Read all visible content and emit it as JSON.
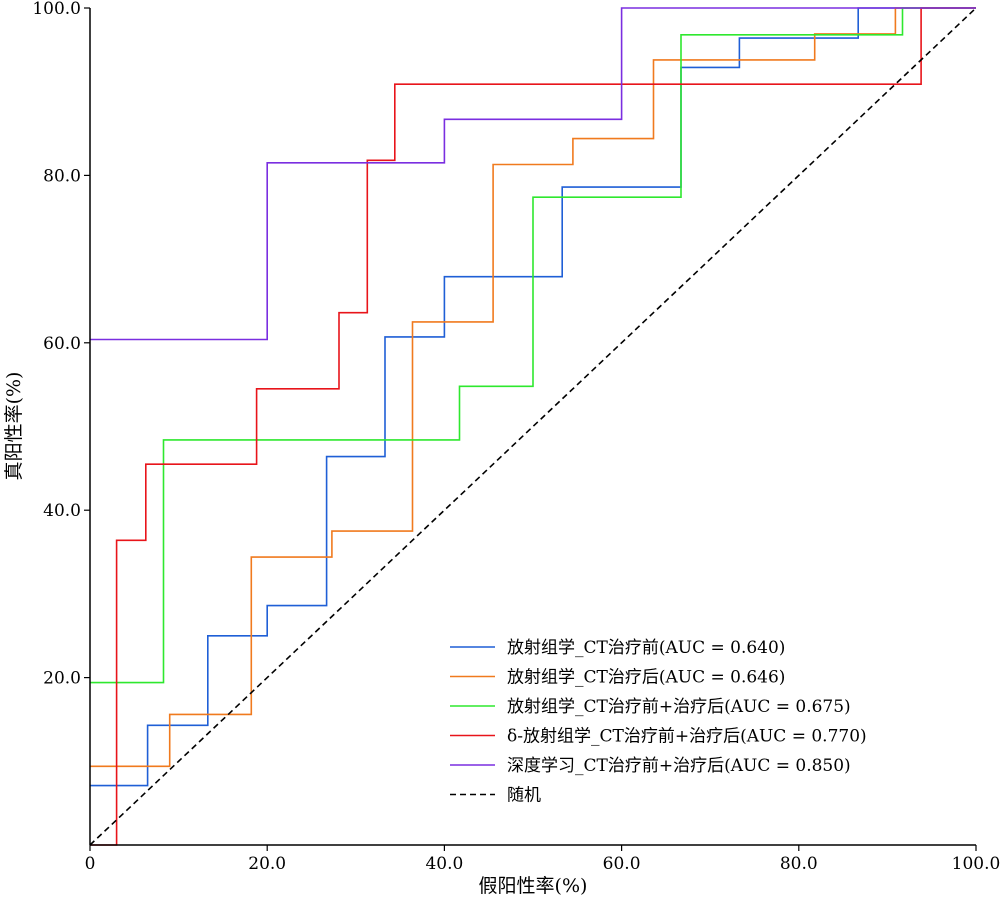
{
  "chart_data": {
    "type": "line",
    "title": "",
    "xlabel": "假阳性率(%)",
    "ylabel": "真阳性率(%)",
    "xlim": [
      0,
      100
    ],
    "ylim": [
      0,
      100
    ],
    "x_ticks": [
      "0",
      "20.0",
      "40.0",
      "60.0",
      "80.0",
      "100.0"
    ],
    "y_ticks": [
      "20.0",
      "40.0",
      "60.0",
      "80.0",
      "100.0"
    ],
    "x_tick_values": [
      0,
      20,
      40,
      60,
      80,
      100
    ],
    "y_tick_values": [
      20,
      40,
      60,
      80,
      100
    ],
    "grid": false,
    "legend_position": "bottom-right",
    "series": [
      {
        "name": "放射组学_CT治疗前(AUC = 0.640)",
        "color": "#1f5fd6",
        "x": [
          0,
          6.5,
          6.5,
          13.3,
          13.3,
          20,
          20,
          26.7,
          26.7,
          33.3,
          33.3,
          40,
          40,
          53.3,
          53.3,
          66.7,
          66.7,
          73.3,
          73.3,
          86.7,
          86.7,
          100
        ],
        "y": [
          7.1,
          7.1,
          14.3,
          14.3,
          25,
          25,
          28.6,
          28.6,
          46.4,
          46.4,
          60.7,
          60.7,
          67.9,
          67.9,
          78.6,
          78.6,
          92.9,
          92.9,
          96.4,
          96.4,
          100,
          100
        ]
      },
      {
        "name": "放射组学_CT治疗后(AUC = 0.646)",
        "color": "#f07a1e",
        "x": [
          0,
          9,
          9,
          18.2,
          18.2,
          27.3,
          27.3,
          36.4,
          36.4,
          45.5,
          45.5,
          54.5,
          54.5,
          63.6,
          63.6,
          81.8,
          81.8,
          90.9,
          90.9,
          100
        ],
        "y": [
          9.4,
          9.4,
          15.6,
          15.6,
          34.4,
          34.4,
          37.5,
          37.5,
          62.5,
          62.5,
          81.3,
          81.3,
          84.4,
          84.4,
          93.8,
          93.8,
          96.9,
          96.9,
          100,
          100
        ]
      },
      {
        "name": "放射组学_CT治疗前+治疗后(AUC = 0.675)",
        "color": "#2ee82e",
        "x": [
          0,
          8.3,
          8.3,
          41.7,
          41.7,
          50,
          50,
          66.7,
          66.7,
          91.7,
          91.7,
          100
        ],
        "y": [
          19.4,
          19.4,
          48.4,
          48.4,
          54.8,
          54.8,
          77.4,
          77.4,
          96.8,
          96.8,
          100,
          100
        ]
      },
      {
        "name": "δ-放射组学_CT治疗前+治疗后(AUC = 0.770)",
        "color": "#e8141a",
        "x": [
          0,
          3,
          3,
          6.3,
          6.3,
          18.8,
          18.8,
          28.1,
          28.1,
          31.3,
          31.3,
          34.4,
          34.4,
          93.8,
          93.8,
          100
        ],
        "y": [
          0,
          0,
          36.4,
          36.4,
          45.5,
          45.5,
          54.5,
          54.5,
          63.6,
          63.6,
          81.8,
          81.8,
          90.9,
          90.9,
          100,
          100
        ]
      },
      {
        "name": "深度学习_CT治疗前+治疗后(AUC = 0.850)",
        "color": "#7a2ee0",
        "x": [
          0,
          20,
          20,
          40,
          40,
          60,
          60,
          100
        ],
        "y": [
          60.4,
          60.4,
          81.5,
          81.5,
          86.7,
          86.7,
          100,
          100
        ]
      },
      {
        "name": "随机",
        "color": "#000000",
        "dashed": true,
        "x": [
          0,
          100
        ],
        "y": [
          0,
          100
        ]
      }
    ]
  }
}
